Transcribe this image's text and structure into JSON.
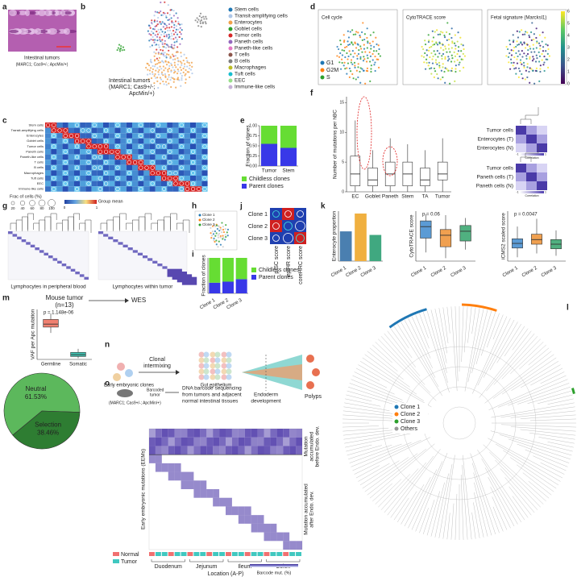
{
  "figure": {
    "labels": [
      "a",
      "b",
      "c",
      "d",
      "e",
      "f",
      "g",
      "h",
      "i",
      "j",
      "k",
      "l",
      "m",
      "n",
      "o"
    ],
    "a_caption": [
      "Intestinal tumors",
      "(MARC1; Cas9+/-; ApcMin/+)"
    ],
    "b_legend": [
      {
        "name": "Stem cells",
        "color": "#1f77b4"
      },
      {
        "name": "Transit-amplifying cells",
        "color": "#aec7e8"
      },
      {
        "name": "Enterocytes",
        "color": "#f0a14a"
      },
      {
        "name": "Goblet cells",
        "color": "#2ca02c"
      },
      {
        "name": "Tumor cells",
        "color": "#d62728"
      },
      {
        "name": "Paneth cells",
        "color": "#9467bd"
      },
      {
        "name": "Paneth-like cells",
        "color": "#e377c2"
      },
      {
        "name": "T cells",
        "color": "#8c564b"
      },
      {
        "name": "B cells",
        "color": "#7f7f7f"
      },
      {
        "name": "Macrophages",
        "color": "#bcbd22"
      },
      {
        "name": "Tuft cells",
        "color": "#17becf"
      },
      {
        "name": "EEC",
        "color": "#98df8a"
      },
      {
        "name": "Immune-like cells",
        "color": "#c5b0d5"
      }
    ],
    "b_caption": [
      "Intestinal tumors",
      "(MARC1; Cas9+/-;",
      "ApcMin/+)"
    ],
    "c_rows": [
      "Stem cells",
      "Transit-amplifying cells",
      "Enterocytes",
      "Goblet cells",
      "Tumor cells",
      "Paneth cells",
      "Paneth-like cells",
      "T cells",
      "B cells",
      "Macrophages",
      "Tuft cells",
      "EEC",
      "Immune-like cells"
    ],
    "c_size_title": "Frac of cells (%)",
    "c_sizes": [
      20,
      40,
      60,
      80,
      100
    ],
    "c_color_title": "Group mean",
    "c_color_ticks": [
      0,
      1
    ],
    "d_titles": [
      "Cell cycle",
      "CytoTRACE score",
      "Fetal signature (Marcksl1)"
    ],
    "d_phases": [
      {
        "name": "G1",
        "color": "#1f77b4"
      },
      {
        "name": "G2M",
        "color": "#ff7f0e"
      },
      {
        "name": "S",
        "color": "#2ca02c"
      }
    ],
    "d_cbar_ticks": [
      0,
      1,
      2,
      3,
      4,
      5,
      6
    ],
    "f_side_top": [
      "Tumor cells",
      "Enterocytes (T)",
      "Enterocytes (N)"
    ],
    "f_side_bottom": [
      "Tumor cells",
      "Paneth cells (T)",
      "Paneth cells (N)"
    ],
    "f_cbar_title": "Correlation",
    "f_cbar_ticks": [
      -1,
      1
    ],
    "g_captions": [
      "Lymphocytes in peripheral blood",
      "Lymphocytes within tumor"
    ],
    "h_legend": [
      {
        "name": "Clone 1",
        "color": "#1f77b4"
      },
      {
        "name": "Clone 2",
        "color": "#ff7f0e"
      },
      {
        "name": "Clone 3",
        "color": "#2ca02c"
      }
    ],
    "j_rows": [
      "Clone 1",
      "Clone 2",
      "Clone 3"
    ],
    "j_cols": [
      "pISC score",
      "epiHR score",
      "coreHRC score"
    ],
    "l_legend": [
      {
        "name": "Clone 1",
        "color": "#1f77b4"
      },
      {
        "name": "Clone 2",
        "color": "#ff7f0e"
      },
      {
        "name": "Clone 3",
        "color": "#2ca02c"
      },
      {
        "name": "Others",
        "color": "#999999"
      }
    ],
    "m_title": "Mouse tumor",
    "m_n": "(n=13)",
    "m_arrow": "WES",
    "n_arrow": "Clonal",
    "n_arrow2": "intermixing",
    "n_early": "Early embryonic clones",
    "n_gut": "Gut epithelium",
    "n_endo": "Endoderm",
    "n_endo2": "development",
    "n_polyps": "Polyps",
    "o_mouse": "Barcoded",
    "o_mouse2": "tumor",
    "o_genotype": "(MARC1; Cas9+/-; ApcMin/+)",
    "o_seq": [
      "DNA barcode sequencing",
      "from tumors and adjacent",
      "normal intestinal tissues"
    ],
    "o_yleft": "Early embryonic mutations (EEMs)",
    "o_right1": [
      "Mutation",
      "accumulated",
      "before Endo. dev."
    ],
    "o_right2": [
      "Mutation accumulated",
      "after Endo. dev."
    ],
    "o_legend": [
      {
        "name": "Normal",
        "color": "#f07070"
      },
      {
        "name": "Tumor",
        "color": "#40c8c0"
      }
    ],
    "o_regions": [
      "Duodenum",
      "Jejunum",
      "Ileum",
      "Colon"
    ],
    "o_xlabel": "Location (A-P)",
    "o_cbar_title": "Barcode mut. (%)"
  },
  "chart_data": [
    {
      "type": "bar",
      "stacked": true,
      "categories": [
        "Tumor",
        "Stem"
      ],
      "ylabel": "Fraction of clones",
      "series": [
        {
          "name": "Childless clones",
          "color": "#66dd33",
          "values": [
            0.45,
            0.55
          ]
        },
        {
          "name": "Parent clones",
          "color": "#3838e8",
          "values": [
            0.55,
            0.45
          ]
        }
      ],
      "ylim": [
        0,
        1
      ],
      "yticks": [
        {
          "value": 0,
          "label": "0.00"
        },
        {
          "value": 0.25,
          "label": "0.25"
        },
        {
          "value": 0.5,
          "label": "0.50"
        },
        {
          "value": 0.75,
          "label": "0.75"
        },
        {
          "value": 1,
          "label": "1.00"
        }
      ]
    },
    {
      "type": "box",
      "categories": [
        "EC",
        "Goblet",
        "Paneth",
        "Stem",
        "TA",
        "Tumor"
      ],
      "ylabel": "Number of mutations per hBC",
      "color": "#ffffff",
      "boxes": [
        {
          "low": 0,
          "q1": 1,
          "median": 3,
          "q3": 6,
          "high": 12
        },
        {
          "low": 0,
          "q1": 1,
          "median": 2,
          "q3": 4,
          "high": 7
        },
        {
          "low": 0,
          "q1": 1,
          "median": 3,
          "q3": 5,
          "high": 9
        },
        {
          "low": 0,
          "q1": 1,
          "median": 3,
          "q3": 5,
          "high": 8
        },
        {
          "low": 0,
          "q1": 1,
          "median": 2,
          "q3": 4,
          "high": 7
        },
        {
          "low": 0,
          "q1": 2,
          "median": 3,
          "q3": 5,
          "high": 9
        }
      ],
      "ylim": [
        0,
        16
      ],
      "yticks": [
        0,
        5,
        10,
        15
      ]
    },
    {
      "type": "bar",
      "stacked": true,
      "categories": [
        "Clone 1",
        "Clone 2",
        "Clone 3"
      ],
      "ylabel": "Fraction of clones",
      "series": [
        {
          "name": "Childless clones",
          "color": "#66dd33",
          "values": [
            0.7,
            0.67,
            0.6
          ]
        },
        {
          "name": "Parent clones",
          "color": "#3838e8",
          "values": [
            0.3,
            0.33,
            0.4
          ]
        }
      ],
      "ylim": [
        0,
        1
      ]
    },
    {
      "type": "bar",
      "categories": [
        "Clone 1",
        "Clone 2",
        "Clone 3"
      ],
      "ylabel": "Enterocyte proportion",
      "values": [
        0.25,
        0.4,
        0.22
      ],
      "colors": [
        "#4a7fb0",
        "#f0b040",
        "#40a880"
      ],
      "ylim": [
        0,
        0.42
      ]
    },
    {
      "type": "box",
      "categories": [
        "Clone 1",
        "Clone 2",
        "Clone 3"
      ],
      "ylabel": "CytoTRACE score",
      "annotation": "p = 0.06",
      "colors": [
        "#5b9bd5",
        "#f0a050",
        "#50b080"
      ],
      "boxes": [
        {
          "low": 0.25,
          "q1": 0.5,
          "median": 0.7,
          "q3": 0.8,
          "high": 0.92
        },
        {
          "low": 0.15,
          "q1": 0.35,
          "median": 0.55,
          "q3": 0.65,
          "high": 0.9
        },
        {
          "low": 0.3,
          "q1": 0.45,
          "median": 0.62,
          "q3": 0.72,
          "high": 0.85
        }
      ],
      "ylim": [
        0.1,
        0.97
      ]
    },
    {
      "type": "box",
      "categories": [
        "Clone 1",
        "Clone 2",
        "Clone 3"
      ],
      "ylabel": "iCMS2 scaled score",
      "annotation": "p = 0.0047",
      "colors": [
        "#5b9bd5",
        "#f0a050",
        "#50b080"
      ],
      "boxes": [
        {
          "low": -2,
          "q1": -0.8,
          "median": -0.2,
          "q3": 0.4,
          "high": 2
        },
        {
          "low": -1.5,
          "q1": -0.3,
          "median": 0.3,
          "q3": 1,
          "high": 3
        },
        {
          "low": -1.8,
          "q1": -0.9,
          "median": -0.3,
          "q3": 0.3,
          "high": 1.5
        }
      ],
      "ylim": [
        -2.5,
        4
      ]
    },
    {
      "type": "box",
      "categories": [
        "Germline",
        "Somatic"
      ],
      "ylabel": "VAF per Apc mutation",
      "annotation": "p = 1.148e-06",
      "colors": [
        "#f08070",
        "#40c0b0"
      ],
      "boxes": [
        {
          "low": 0.45,
          "q1": 0.55,
          "median": 0.6,
          "q3": 0.68,
          "high": 0.78
        },
        {
          "low": 0.02,
          "q1": 0.05,
          "median": 0.08,
          "q3": 0.12,
          "high": 0.18
        }
      ],
      "ylim": [
        0,
        0.85
      ]
    },
    {
      "type": "pie",
      "labels": [
        "Neutral",
        "Selection"
      ],
      "values": [
        61.53,
        38.46
      ],
      "value_labels": [
        "61.53%",
        "38.46%"
      ],
      "colors": [
        "#5cb85c",
        "#2e7d32"
      ]
    }
  ]
}
